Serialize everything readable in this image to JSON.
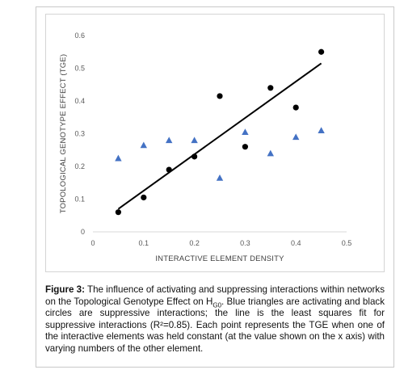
{
  "chart_data": {
    "type": "scatter",
    "xlabel": "INTERACTIVE ELEMENT DENSITY",
    "ylabel": "TOPOLOGICAL GENOTYPE EFFECT (TGE)",
    "xlim": [
      0,
      0.5
    ],
    "ylim": [
      0,
      0.6
    ],
    "x_ticks": [
      "0",
      "0.1",
      "0.2",
      "0.3",
      "0.4",
      "0.5"
    ],
    "y_ticks": [
      "0",
      "0.1",
      "0.2",
      "0.3",
      "0.4",
      "0.5",
      "0.6"
    ],
    "grid": false,
    "series": [
      {
        "marker": "triangle",
        "color": "#4472c4",
        "points": [
          {
            "x": 0.05,
            "y": 0.225
          },
          {
            "x": 0.1,
            "y": 0.265
          },
          {
            "x": 0.15,
            "y": 0.28
          },
          {
            "x": 0.2,
            "y": 0.28
          },
          {
            "x": 0.25,
            "y": 0.165
          },
          {
            "x": 0.3,
            "y": 0.305
          },
          {
            "x": 0.35,
            "y": 0.24
          },
          {
            "x": 0.4,
            "y": 0.29
          },
          {
            "x": 0.45,
            "y": 0.31
          }
        ]
      },
      {
        "marker": "circle",
        "color": "#000000",
        "points": [
          {
            "x": 0.05,
            "y": 0.06
          },
          {
            "x": 0.1,
            "y": 0.105
          },
          {
            "x": 0.15,
            "y": 0.19
          },
          {
            "x": 0.2,
            "y": 0.23
          },
          {
            "x": 0.25,
            "y": 0.415
          },
          {
            "x": 0.3,
            "y": 0.26
          },
          {
            "x": 0.35,
            "y": 0.44
          },
          {
            "x": 0.4,
            "y": 0.38
          },
          {
            "x": 0.45,
            "y": 0.55
          }
        ]
      }
    ],
    "trendline": {
      "color": "#000000",
      "x_start": 0.05,
      "y_start": 0.07,
      "x_end": 0.45,
      "y_end": 0.515
    }
  },
  "caption": {
    "label": "Figure 3:",
    "text_before_sub": " The influence of activating and suppressing interactions within networks on the Topological Genotype Effect on H",
    "subscript": "G0",
    "text_after_sub": ". Blue triangles are activating and black circles are suppressive interactions; the line is the least squares fit for suppressive interactions (R²=0.85). Each point represents the TGE when one of the interactive elements was held constant (at the value shown on the x axis) with varying numbers of the other element."
  }
}
